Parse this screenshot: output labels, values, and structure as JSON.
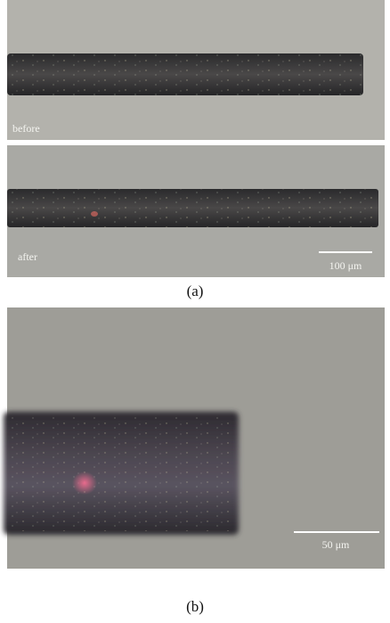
{
  "figure": {
    "panels": [
      {
        "label": "(a)",
        "images": [
          {
            "caption": "before"
          },
          {
            "caption": "after",
            "scale_bar": "100 μm"
          }
        ]
      },
      {
        "label": "(b)",
        "scale_bar": "50 μm"
      }
    ]
  }
}
